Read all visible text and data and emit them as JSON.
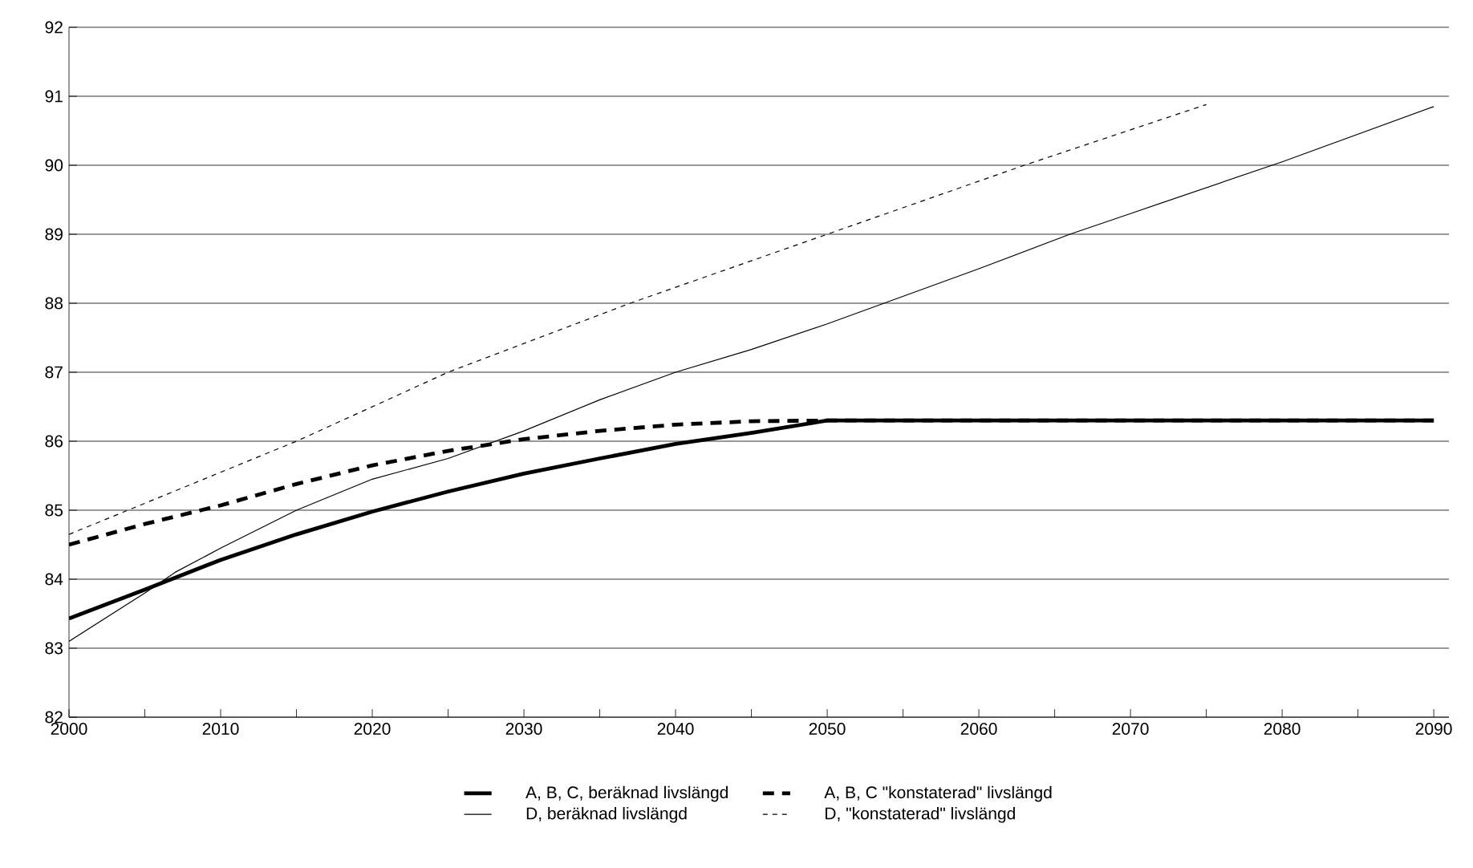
{
  "chart_data": {
    "type": "line",
    "xlim": [
      2000,
      2091
    ],
    "ylim": [
      82,
      92
    ],
    "xticks": [
      2000,
      {
        "value": 2005,
        "label": null
      },
      2010,
      {
        "value": 2015,
        "label": null
      },
      2020,
      {
        "value": 2025,
        "label": null
      },
      2030,
      {
        "value": 2035,
        "label": null
      },
      2040,
      {
        "value": 2045,
        "label": null
      },
      2050,
      {
        "value": 2055,
        "label": null
      },
      2060,
      {
        "value": 2065,
        "label": null
      },
      2070,
      {
        "value": 2075,
        "label": null
      },
      2080,
      {
        "value": 2085,
        "label": null
      },
      2090
    ],
    "yticks": [
      82,
      83,
      84,
      85,
      86,
      87,
      88,
      89,
      90,
      91,
      92
    ],
    "grid": "y",
    "legend": "bottom",
    "marker": "none",
    "series": [
      {
        "name": "A, B, C, beräknad livslängd",
        "color": "#000000",
        "line_style": "solid",
        "x": [
          2000,
          2005,
          2010,
          2015,
          2020,
          2025,
          2030,
          2035,
          2040,
          2045,
          2050,
          2090
        ],
        "values": [
          83.43,
          83.85,
          84.28,
          84.65,
          84.98,
          85.27,
          85.53,
          85.75,
          85.96,
          86.12,
          86.3,
          86.3
        ]
      },
      {
        "name": "A, B, C \"konstaterad\" livslängd",
        "color": "#000000",
        "line_style": "dashed",
        "x": [
          2000,
          2005,
          2010,
          2015,
          2020,
          2025,
          2030,
          2035,
          2040,
          2045,
          2050,
          2090
        ],
        "values": [
          84.5,
          84.8,
          85.07,
          85.38,
          85.65,
          85.86,
          86.03,
          86.15,
          86.24,
          86.29,
          86.3,
          86.3
        ]
      },
      {
        "name": "D, beräknad livslängd",
        "color": "#000000",
        "line_style": "solid",
        "x": [
          2000,
          2005,
          2007,
          2010,
          2015,
          2020,
          2025,
          2030,
          2035,
          2040,
          2045,
          2050,
          2060,
          2066,
          2070,
          2080,
          2090
        ],
        "values": [
          83.1,
          83.8,
          84.1,
          84.45,
          85.0,
          85.45,
          85.75,
          86.15,
          86.6,
          87.0,
          87.33,
          87.7,
          88.5,
          89.0,
          89.3,
          90.05,
          90.85
        ]
      },
      {
        "name": "D, \"konstaterad\" livslängd",
        "color": "#000000",
        "line_style": "dotted",
        "x": [
          2000,
          2015,
          2025,
          2037,
          2050,
          2063,
          2075
        ],
        "values": [
          84.65,
          86.0,
          87.0,
          88.0,
          89.0,
          90.0,
          90.88
        ]
      }
    ]
  }
}
